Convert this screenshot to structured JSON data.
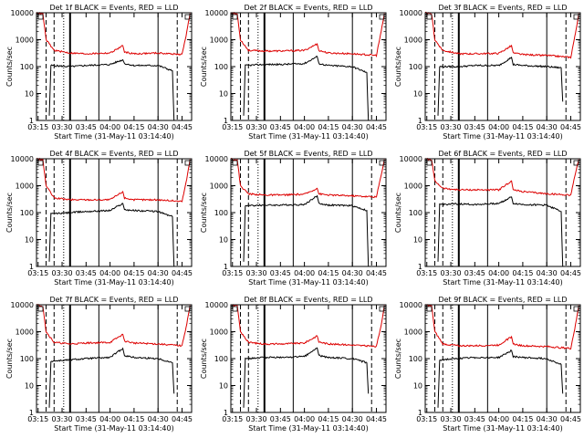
{
  "xlabel": "Start Time (31-May-11 03:14:40)",
  "ylabel": "Counts/sec",
  "y_ticks": [
    "1",
    "10",
    "100",
    "1000",
    "10000"
  ],
  "x_ticks": [
    "03:15",
    "03:30",
    "03:45",
    "04:00",
    "04:15",
    "04:30",
    "04:45"
  ],
  "colors": {
    "events": "#000000",
    "lld": "#dd0000"
  },
  "chart_data": [
    {
      "type": "line",
      "title": "Det 1f BLACK = Events, RED = LLD",
      "yscale": "log",
      "ylim": [
        1,
        10000
      ],
      "xlim": [
        "03:14",
        "04:51"
      ],
      "series": [
        {
          "key": "events",
          "x": [
            "03:22",
            "03:23",
            "03:35",
            "03:45",
            "04:00",
            "04:08",
            "04:09",
            "04:15",
            "04:30",
            "04:39",
            "04:40"
          ],
          "y": [
            1.5,
            110,
            100,
            110,
            120,
            180,
            130,
            110,
            110,
            70,
            1
          ]
        },
        {
          "key": "lld",
          "x": [
            "03:14",
            "03:18",
            "03:20",
            "03:25",
            "03:35",
            "03:45",
            "04:00",
            "04:08",
            "04:09",
            "04:15",
            "04:30",
            "04:45",
            "04:48",
            "04:50"
          ],
          "y": [
            10000,
            9000,
            1000,
            400,
            320,
            300,
            320,
            600,
            350,
            300,
            320,
            280,
            2000,
            9500
          ]
        }
      ]
    },
    {
      "type": "line",
      "title": "Det 2f BLACK = Events, RED = LLD",
      "yscale": "log",
      "ylim": [
        1,
        10000
      ],
      "xlim": [
        "03:14",
        "04:51"
      ],
      "series": [
        {
          "key": "events",
          "x": [
            "03:22",
            "03:23",
            "03:35",
            "03:45",
            "04:00",
            "04:08",
            "04:09",
            "04:15",
            "04:30",
            "04:39",
            "04:40"
          ],
          "y": [
            1.5,
            110,
            120,
            120,
            130,
            240,
            130,
            110,
            100,
            60,
            1
          ]
        },
        {
          "key": "lld",
          "x": [
            "03:14",
            "03:18",
            "03:20",
            "03:25",
            "03:35",
            "03:45",
            "04:00",
            "04:08",
            "04:09",
            "04:15",
            "04:30",
            "04:45",
            "04:48",
            "04:50"
          ],
          "y": [
            10000,
            9000,
            1000,
            400,
            380,
            380,
            400,
            700,
            400,
            320,
            300,
            260,
            2000,
            9500
          ]
        }
      ]
    },
    {
      "type": "line",
      "title": "Det 3f BLACK = Events, RED = LLD",
      "yscale": "log",
      "ylim": [
        1,
        10000
      ],
      "xlim": [
        "03:14",
        "04:51"
      ],
      "series": [
        {
          "key": "events",
          "x": [
            "03:22",
            "03:23",
            "03:35",
            "03:45",
            "04:00",
            "04:08",
            "04:09",
            "04:15",
            "04:30",
            "04:39",
            "04:40"
          ],
          "y": [
            1.5,
            100,
            100,
            110,
            110,
            220,
            120,
            110,
            100,
            90,
            5
          ]
        },
        {
          "key": "lld",
          "x": [
            "03:14",
            "03:18",
            "03:20",
            "03:25",
            "03:35",
            "03:45",
            "04:00",
            "04:08",
            "04:09",
            "04:15",
            "04:30",
            "04:45",
            "04:48",
            "04:50"
          ],
          "y": [
            10000,
            9000,
            1000,
            400,
            300,
            300,
            310,
            600,
            320,
            280,
            260,
            220,
            1800,
            9500
          ]
        }
      ]
    },
    {
      "type": "line",
      "title": "Det 4f BLACK = Events, RED = LLD",
      "yscale": "log",
      "ylim": [
        1,
        10000
      ],
      "xlim": [
        "03:14",
        "04:51"
      ],
      "series": [
        {
          "key": "events",
          "x": [
            "03:22",
            "03:23",
            "03:35",
            "03:45",
            "04:00",
            "04:08",
            "04:09",
            "04:15",
            "04:30",
            "04:39",
            "04:40"
          ],
          "y": [
            1.5,
            90,
            100,
            110,
            120,
            220,
            130,
            120,
            110,
            70,
            1
          ]
        },
        {
          "key": "lld",
          "x": [
            "03:14",
            "03:18",
            "03:20",
            "03:25",
            "03:35",
            "03:45",
            "04:00",
            "04:08",
            "04:09",
            "04:15",
            "04:30",
            "04:45",
            "04:48",
            "04:50"
          ],
          "y": [
            10000,
            9000,
            1000,
            350,
            300,
            300,
            300,
            600,
            350,
            300,
            300,
            260,
            1800,
            9500
          ]
        }
      ]
    },
    {
      "type": "line",
      "title": "Det 5f BLACK = Events, RED = LLD",
      "yscale": "log",
      "ylim": [
        1,
        10000
      ],
      "xlim": [
        "03:14",
        "04:51"
      ],
      "series": [
        {
          "key": "events",
          "x": [
            "03:22",
            "03:23",
            "03:35",
            "03:45",
            "04:00",
            "04:08",
            "04:09",
            "04:15",
            "04:30",
            "04:39",
            "04:40"
          ],
          "y": [
            1.5,
            180,
            190,
            190,
            200,
            420,
            220,
            190,
            180,
            120,
            1
          ]
        },
        {
          "key": "lld",
          "x": [
            "03:14",
            "03:18",
            "03:20",
            "03:25",
            "03:35",
            "03:45",
            "04:00",
            "04:08",
            "04:09",
            "04:15",
            "04:30",
            "04:45",
            "04:48",
            "04:50"
          ],
          "y": [
            10000,
            9000,
            1000,
            500,
            450,
            450,
            480,
            800,
            500,
            450,
            420,
            380,
            2500,
            9500
          ]
        }
      ]
    },
    {
      "type": "line",
      "title": "Det 6f BLACK = Events, RED = LLD",
      "yscale": "log",
      "ylim": [
        1,
        10000
      ],
      "xlim": [
        "03:14",
        "04:51"
      ],
      "series": [
        {
          "key": "events",
          "x": [
            "03:22",
            "03:23",
            "03:35",
            "03:45",
            "04:00",
            "04:08",
            "04:09",
            "04:15",
            "04:30",
            "04:39",
            "04:40"
          ],
          "y": [
            1.5,
            200,
            210,
            200,
            220,
            380,
            220,
            200,
            190,
            110,
            1
          ]
        },
        {
          "key": "lld",
          "x": [
            "03:14",
            "03:18",
            "03:20",
            "03:25",
            "03:35",
            "03:45",
            "04:00",
            "04:08",
            "04:09",
            "04:15",
            "04:30",
            "04:45",
            "04:48",
            "04:50"
          ],
          "y": [
            10000,
            9000,
            1500,
            800,
            700,
            700,
            700,
            1500,
            700,
            600,
            500,
            450,
            3000,
            9500
          ]
        }
      ]
    },
    {
      "type": "line",
      "title": "Det 7f BLACK = Events, RED = LLD",
      "yscale": "log",
      "ylim": [
        1,
        10000
      ],
      "xlim": [
        "03:14",
        "04:51"
      ],
      "series": [
        {
          "key": "events",
          "x": [
            "03:22",
            "03:23",
            "03:35",
            "03:45",
            "04:00",
            "04:08",
            "04:09",
            "04:15",
            "04:30",
            "04:39",
            "04:40"
          ],
          "y": [
            1.5,
            80,
            90,
            100,
            110,
            240,
            130,
            110,
            100,
            70,
            5
          ]
        },
        {
          "key": "lld",
          "x": [
            "03:14",
            "03:18",
            "03:20",
            "03:25",
            "03:35",
            "03:45",
            "04:00",
            "04:08",
            "04:09",
            "04:15",
            "04:30",
            "04:45",
            "04:48",
            "04:50"
          ],
          "y": [
            10000,
            9000,
            1000,
            400,
            350,
            380,
            400,
            800,
            450,
            380,
            350,
            300,
            2000,
            9500
          ]
        }
      ]
    },
    {
      "type": "line",
      "title": "Det 8f BLACK = Events, RED = LLD",
      "yscale": "log",
      "ylim": [
        1,
        10000
      ],
      "xlim": [
        "03:14",
        "04:51"
      ],
      "series": [
        {
          "key": "events",
          "x": [
            "03:22",
            "03:23",
            "03:35",
            "03:45",
            "04:00",
            "04:08",
            "04:09",
            "04:15",
            "04:30",
            "04:39",
            "04:40"
          ],
          "y": [
            1.5,
            100,
            110,
            110,
            120,
            250,
            130,
            110,
            100,
            70,
            5
          ]
        },
        {
          "key": "lld",
          "x": [
            "03:14",
            "03:18",
            "03:20",
            "03:25",
            "03:35",
            "03:45",
            "04:00",
            "04:08",
            "04:09",
            "04:15",
            "04:30",
            "04:45",
            "04:48",
            "04:50"
          ],
          "y": [
            10000,
            9000,
            1000,
            400,
            350,
            350,
            380,
            700,
            420,
            350,
            320,
            280,
            1800,
            9500
          ]
        }
      ]
    },
    {
      "type": "line",
      "title": "Det 9f BLACK = Events, RED = LLD",
      "yscale": "log",
      "ylim": [
        1,
        10000
      ],
      "xlim": [
        "03:14",
        "04:51"
      ],
      "series": [
        {
          "key": "events",
          "x": [
            "03:22",
            "03:23",
            "03:35",
            "03:45",
            "04:00",
            "04:08",
            "04:09",
            "04:15",
            "04:30",
            "04:39",
            "04:40"
          ],
          "y": [
            1.5,
            90,
            100,
            110,
            110,
            200,
            120,
            110,
            100,
            60,
            5
          ]
        },
        {
          "key": "lld",
          "x": [
            "03:14",
            "03:18",
            "03:20",
            "03:25",
            "03:35",
            "03:45",
            "04:00",
            "04:08",
            "04:09",
            "04:15",
            "04:30",
            "04:45",
            "04:48",
            "04:50"
          ],
          "y": [
            10000,
            9000,
            1000,
            350,
            300,
            300,
            320,
            650,
            350,
            300,
            280,
            240,
            1800,
            9500
          ]
        }
      ]
    }
  ]
}
